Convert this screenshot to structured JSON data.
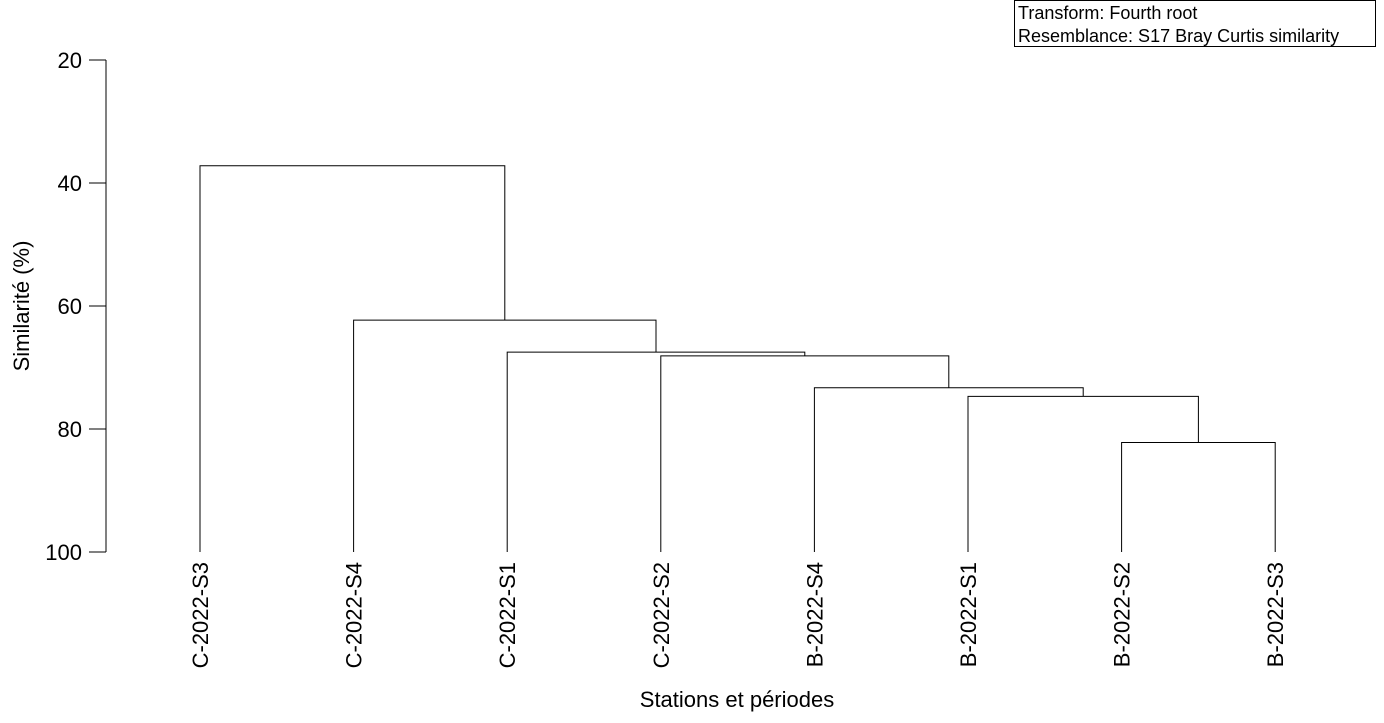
{
  "chart_data": {
    "type": "dendrogram",
    "xlabel": "Stations et périodes",
    "ylabel": "Similarité (%)",
    "ylim": [
      20,
      100
    ],
    "yticks": [
      20,
      40,
      60,
      80,
      100
    ],
    "y_inverted": true,
    "leaves": [
      "C-2022-S3",
      "C-2022-S4",
      "C-2022-S1",
      "C-2022-S2",
      "B-2022-S4",
      "B-2022-S1",
      "B-2022-S2",
      "B-2022-S3"
    ],
    "merges": [
      {
        "id": "m1",
        "left": "B-2022-S2",
        "right": "B-2022-S3",
        "similarity": 82.2
      },
      {
        "id": "m2",
        "left": "B-2022-S1",
        "right": "m1",
        "similarity": 74.7
      },
      {
        "id": "m3",
        "left": "B-2022-S4",
        "right": "m2",
        "similarity": 73.3
      },
      {
        "id": "m4",
        "left": "C-2022-S2",
        "right": "m3",
        "similarity": 68.1
      },
      {
        "id": "m5",
        "left": "C-2022-S1",
        "right": "m4",
        "similarity": 67.5
      },
      {
        "id": "m6",
        "left": "C-2022-S4",
        "right": "m5",
        "similarity": 62.3
      },
      {
        "id": "m7",
        "left": "C-2022-S3",
        "right": "m6",
        "similarity": 37.2
      }
    ]
  },
  "legend": {
    "transform": "Transform: Fourth root",
    "resemblance": "Resemblance: S17 Bray Curtis similarity"
  }
}
